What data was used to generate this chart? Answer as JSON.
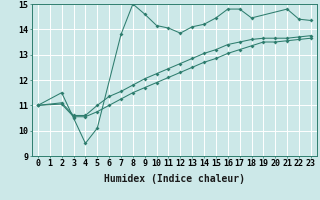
{
  "line1_x": [
    0,
    2,
    3,
    4,
    5,
    7,
    8,
    9,
    10,
    11,
    12,
    13,
    14,
    15,
    16,
    17,
    18,
    21,
    22,
    23
  ],
  "line1_y": [
    11.0,
    11.5,
    10.5,
    9.5,
    10.1,
    13.8,
    15.0,
    14.6,
    14.15,
    14.05,
    13.85,
    14.1,
    14.2,
    14.45,
    14.8,
    14.8,
    14.45,
    14.8,
    14.4,
    14.35
  ],
  "line2_x": [
    0,
    2,
    3,
    4,
    5,
    6,
    7,
    8,
    9,
    10,
    11,
    12,
    13,
    14,
    15,
    16,
    17,
    18,
    19,
    20,
    21,
    22,
    23
  ],
  "line2_y": [
    11.0,
    11.05,
    10.55,
    10.55,
    10.75,
    11.0,
    11.25,
    11.5,
    11.7,
    11.9,
    12.1,
    12.3,
    12.5,
    12.7,
    12.85,
    13.05,
    13.2,
    13.35,
    13.5,
    13.5,
    13.55,
    13.6,
    13.65
  ],
  "line3_x": [
    0,
    2,
    3,
    4,
    5,
    6,
    7,
    8,
    9,
    10,
    11,
    12,
    13,
    14,
    15,
    16,
    17,
    18,
    19,
    20,
    21,
    22,
    23
  ],
  "line3_y": [
    11.0,
    11.1,
    10.6,
    10.6,
    11.0,
    11.35,
    11.55,
    11.8,
    12.05,
    12.25,
    12.45,
    12.65,
    12.85,
    13.05,
    13.2,
    13.4,
    13.5,
    13.6,
    13.65,
    13.65,
    13.65,
    13.7,
    13.75
  ],
  "line_color": "#2e7d6e",
  "bg_color": "#cce8e8",
  "grid_color": "#ffffff",
  "xlabel": "Humidex (Indice chaleur)",
  "xlim": [
    -0.5,
    23.5
  ],
  "ylim": [
    9,
    15
  ],
  "xtick_vals": [
    0,
    1,
    2,
    3,
    4,
    5,
    6,
    7,
    8,
    9,
    10,
    11,
    12,
    13,
    14,
    15,
    16,
    17,
    18,
    19,
    20,
    21,
    22,
    23
  ],
  "xtick_labels": [
    "0",
    "1",
    "2",
    "3",
    "4",
    "5",
    "6",
    "7",
    "8",
    "9",
    "10",
    "11",
    "12",
    "13",
    "14",
    "15",
    "16",
    "17",
    "18",
    "19",
    "20",
    "21",
    "22",
    "23"
  ],
  "ytick_vals": [
    9,
    10,
    11,
    12,
    13,
    14,
    15
  ],
  "ytick_labels": [
    "9",
    "10",
    "11",
    "12",
    "13",
    "14",
    "15"
  ],
  "xlabel_fontsize": 7.0,
  "tick_fontsize": 6.0
}
